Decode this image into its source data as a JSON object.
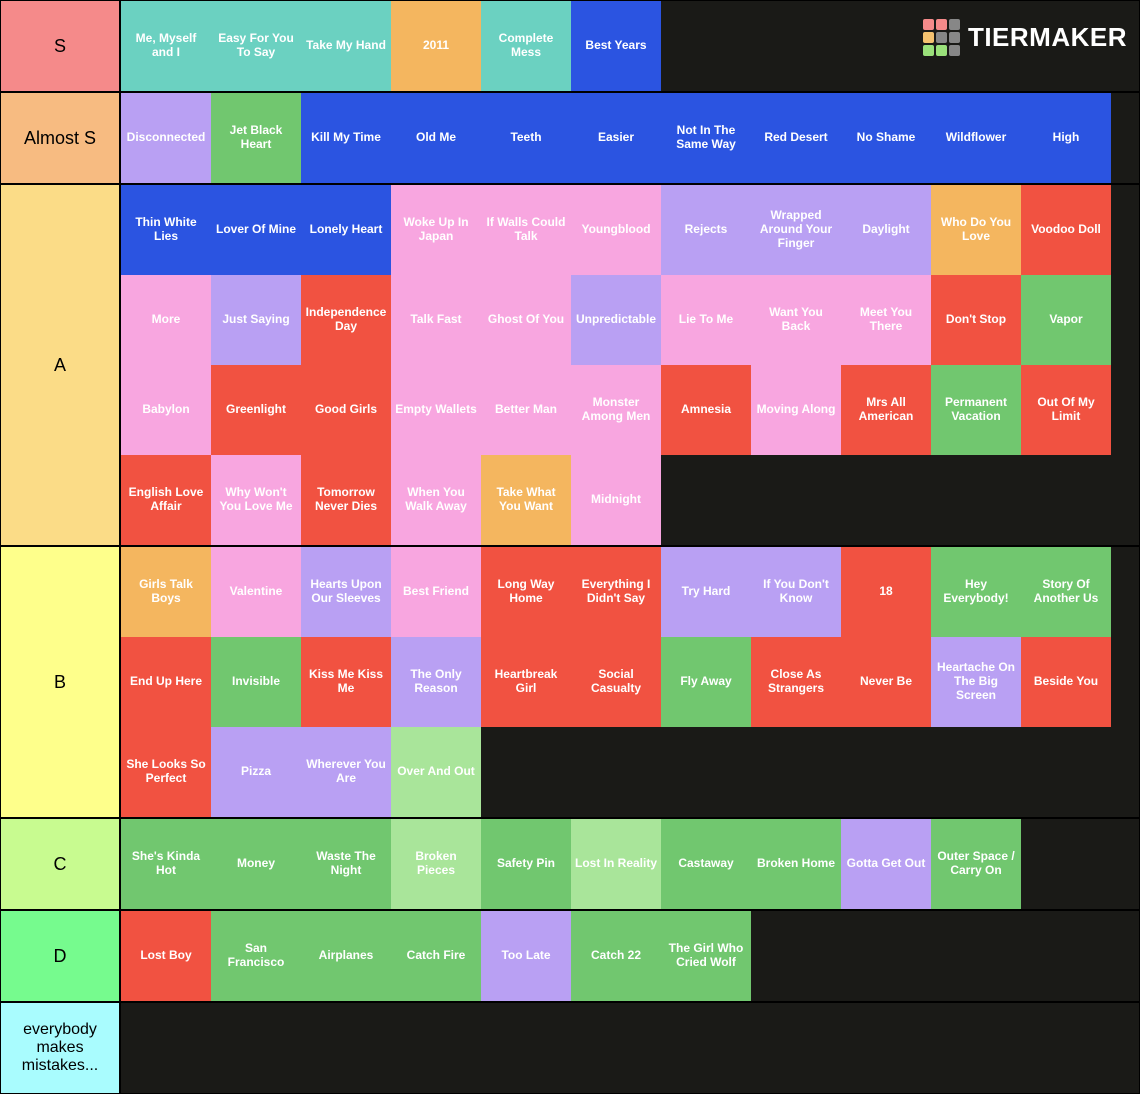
{
  "brand": {
    "text": "TIERMAKER"
  },
  "logo_grid_colors": [
    "#f58a8a",
    "#f58a8a",
    "#878787",
    "#f5c26f",
    "#878787",
    "#878787",
    "#9ae07a",
    "#9ae07a",
    "#878787"
  ],
  "colors": {
    "teal": "#6bd1c1",
    "orange_soft": "#f4b65f",
    "blue": "#2b54e1",
    "lilac": "#b9a0f3",
    "green_med": "#71c76f",
    "pink": "#f8a6e0",
    "red": "#f15241",
    "green_light": "#a9e59a",
    "purple_pale": "#bfb2ec"
  },
  "tiers": [
    {
      "label": "S",
      "label_color": "#f58a8a",
      "show_logo": true,
      "items": [
        {
          "label": "Me, Myself and I",
          "color": "#6bd1c1"
        },
        {
          "label": "Easy For You To Say",
          "color": "#6bd1c1"
        },
        {
          "label": "Take My Hand",
          "color": "#6bd1c1"
        },
        {
          "label": "2011",
          "color": "#f4b65f"
        },
        {
          "label": "Complete Mess",
          "color": "#6bd1c1"
        },
        {
          "label": "Best Years",
          "color": "#2b54e1"
        }
      ]
    },
    {
      "label": "Almost S",
      "label_color": "#f7bb81",
      "items": [
        {
          "label": "Disconnected",
          "color": "#b9a0f3"
        },
        {
          "label": "Jet Black Heart",
          "color": "#71c76f"
        },
        {
          "label": "Kill My Time",
          "color": "#2b54e1"
        },
        {
          "label": "Old Me",
          "color": "#2b54e1"
        },
        {
          "label": "Teeth",
          "color": "#2b54e1"
        },
        {
          "label": "Easier",
          "color": "#2b54e1"
        },
        {
          "label": "Not In The Same Way",
          "color": "#2b54e1"
        },
        {
          "label": "Red Desert",
          "color": "#2b54e1"
        },
        {
          "label": "No Shame",
          "color": "#2b54e1"
        },
        {
          "label": "Wildflower",
          "color": "#2b54e1"
        },
        {
          "label": "High",
          "color": "#2b54e1"
        }
      ]
    },
    {
      "label": "A",
      "label_color": "#fbdc87",
      "items": [
        {
          "label": "Thin White Lies",
          "color": "#2b54e1"
        },
        {
          "label": "Lover Of Mine",
          "color": "#2b54e1"
        },
        {
          "label": "Lonely Heart",
          "color": "#2b54e1"
        },
        {
          "label": "Woke Up In Japan",
          "color": "#f8a6e0"
        },
        {
          "label": "If Walls Could Talk",
          "color": "#f8a6e0"
        },
        {
          "label": "Youngblood",
          "color": "#f8a6e0"
        },
        {
          "label": "Rejects",
          "color": "#b9a0f3"
        },
        {
          "label": "Wrapped Around Your Finger",
          "color": "#b9a0f3"
        },
        {
          "label": "Daylight",
          "color": "#b9a0f3"
        },
        {
          "label": "Who Do You Love",
          "color": "#f4b65f"
        },
        {
          "label": "Voodoo Doll",
          "color": "#f15241"
        },
        {
          "label": "More",
          "color": "#f8a6e0"
        },
        {
          "label": "Just Saying",
          "color": "#b9a0f3"
        },
        {
          "label": "Independence Day",
          "color": "#f15241"
        },
        {
          "label": "Talk Fast",
          "color": "#f8a6e0"
        },
        {
          "label": "Ghost Of You",
          "color": "#f8a6e0"
        },
        {
          "label": "Unpredictable",
          "color": "#b9a0f3"
        },
        {
          "label": "Lie To Me",
          "color": "#f8a6e0"
        },
        {
          "label": "Want You Back",
          "color": "#f8a6e0"
        },
        {
          "label": "Meet You There",
          "color": "#f8a6e0"
        },
        {
          "label": "Don't Stop",
          "color": "#f15241"
        },
        {
          "label": "Vapor",
          "color": "#71c76f"
        },
        {
          "label": "Babylon",
          "color": "#f8a6e0"
        },
        {
          "label": "Greenlight",
          "color": "#f15241"
        },
        {
          "label": "Good Girls",
          "color": "#f15241"
        },
        {
          "label": "Empty Wallets",
          "color": "#f8a6e0"
        },
        {
          "label": "Better Man",
          "color": "#f8a6e0"
        },
        {
          "label": "Monster Among Men",
          "color": "#f8a6e0"
        },
        {
          "label": "Amnesia",
          "color": "#f15241"
        },
        {
          "label": "Moving Along",
          "color": "#f8a6e0"
        },
        {
          "label": "Mrs All American",
          "color": "#f15241"
        },
        {
          "label": "Permanent Vacation",
          "color": "#71c76f"
        },
        {
          "label": "Out Of My Limit",
          "color": "#f15241"
        },
        {
          "label": "English Love Affair",
          "color": "#f15241"
        },
        {
          "label": "Why Won't You Love Me",
          "color": "#f8a6e0"
        },
        {
          "label": "Tomorrow Never Dies",
          "color": "#f15241"
        },
        {
          "label": "When You Walk Away",
          "color": "#f8a6e0"
        },
        {
          "label": "Take What You Want",
          "color": "#f4b65f"
        },
        {
          "label": "Midnight",
          "color": "#f8a6e0"
        }
      ]
    },
    {
      "label": "B",
      "label_color": "#feff8b",
      "items": [
        {
          "label": "Girls Talk Boys",
          "color": "#f4b65f"
        },
        {
          "label": "Valentine",
          "color": "#f8a6e0"
        },
        {
          "label": "Hearts Upon Our Sleeves",
          "color": "#b9a0f3"
        },
        {
          "label": "Best Friend",
          "color": "#f8a6e0"
        },
        {
          "label": "Long Way Home",
          "color": "#f15241"
        },
        {
          "label": "Everything I Didn't Say",
          "color": "#f15241"
        },
        {
          "label": "Try Hard",
          "color": "#b9a0f3"
        },
        {
          "label": "If You Don't Know",
          "color": "#b9a0f3"
        },
        {
          "label": "18",
          "color": "#f15241"
        },
        {
          "label": "Hey Everybody!",
          "color": "#71c76f"
        },
        {
          "label": "Story Of Another Us",
          "color": "#71c76f"
        },
        {
          "label": "End Up Here",
          "color": "#f15241"
        },
        {
          "label": "Invisible",
          "color": "#71c76f"
        },
        {
          "label": "Kiss Me Kiss Me",
          "color": "#f15241"
        },
        {
          "label": "The Only Reason",
          "color": "#b9a0f3"
        },
        {
          "label": "Heartbreak Girl",
          "color": "#f15241"
        },
        {
          "label": "Social Casualty",
          "color": "#f15241"
        },
        {
          "label": "Fly Away",
          "color": "#71c76f"
        },
        {
          "label": "Close As Strangers",
          "color": "#f15241"
        },
        {
          "label": "Never Be",
          "color": "#f15241"
        },
        {
          "label": "Heartache On The Big Screen",
          "color": "#b9a0f3"
        },
        {
          "label": "Beside You",
          "color": "#f15241"
        },
        {
          "label": "She Looks So Perfect",
          "color": "#f15241"
        },
        {
          "label": "Pizza",
          "color": "#b9a0f3"
        },
        {
          "label": "Wherever You Are",
          "color": "#b9a0f3"
        },
        {
          "label": "Over And Out",
          "color": "#a9e59a"
        }
      ]
    },
    {
      "label": "C",
      "label_color": "#c8fb90",
      "items": [
        {
          "label": "She's Kinda Hot",
          "color": "#71c76f"
        },
        {
          "label": "Money",
          "color": "#71c76f"
        },
        {
          "label": "Waste The Night",
          "color": "#71c76f"
        },
        {
          "label": "Broken Pieces",
          "color": "#a9e59a"
        },
        {
          "label": "Safety Pin",
          "color": "#71c76f"
        },
        {
          "label": "Lost In Reality",
          "color": "#a9e59a"
        },
        {
          "label": "Castaway",
          "color": "#71c76f"
        },
        {
          "label": "Broken Home",
          "color": "#71c76f"
        },
        {
          "label": "Gotta Get Out",
          "color": "#b9a0f3"
        },
        {
          "label": "Outer Space / Carry On",
          "color": "#71c76f"
        }
      ]
    },
    {
      "label": "D",
      "label_color": "#76fb8e",
      "items": [
        {
          "label": "Lost Boy",
          "color": "#f15241"
        },
        {
          "label": "San Francisco",
          "color": "#71c76f"
        },
        {
          "label": "Airplanes",
          "color": "#71c76f"
        },
        {
          "label": "Catch Fire",
          "color": "#71c76f"
        },
        {
          "label": "Too Late",
          "color": "#b9a0f3"
        },
        {
          "label": "Catch 22",
          "color": "#71c76f"
        },
        {
          "label": "The Girl Who Cried Wolf",
          "color": "#71c76f"
        }
      ]
    },
    {
      "label": "everybody makes mistakes...",
      "label_color": "#a9fcfe",
      "label_fontsize": "16px",
      "items": []
    }
  ]
}
